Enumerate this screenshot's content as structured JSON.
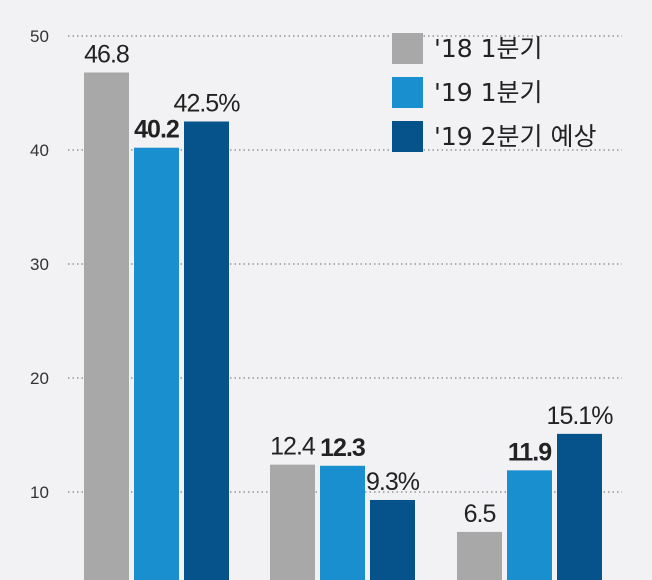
{
  "chart_data": {
    "type": "bar",
    "categories": [
      "",
      "",
      ""
    ],
    "series": [
      {
        "name": "'18 1분기",
        "color": "#a8a8a8",
        "values": [
          46.8,
          12.4,
          6.5
        ],
        "labels": [
          "46.8",
          "12.4",
          "6.5"
        ],
        "bold": [
          false,
          false,
          false
        ]
      },
      {
        "name": "'19 1분기",
        "color": "#1a8fd0",
        "values": [
          40.2,
          12.3,
          11.9
        ],
        "labels": [
          "40.2",
          "12.3",
          "11.9"
        ],
        "bold": [
          true,
          true,
          true
        ]
      },
      {
        "name": "'19 2분기 예상",
        "color": "#05538a",
        "values": [
          42.5,
          9.3,
          15.1
        ],
        "labels": [
          "42.5%",
          "9.3%",
          "15.1%"
        ],
        "bold": [
          false,
          false,
          false
        ]
      }
    ],
    "yticks": [
      10,
      20,
      30,
      40,
      50
    ],
    "ylim": [
      0,
      50
    ],
    "grid": true,
    "legend_position": "top-right",
    "title": "",
    "xlabel": "",
    "ylabel": ""
  }
}
